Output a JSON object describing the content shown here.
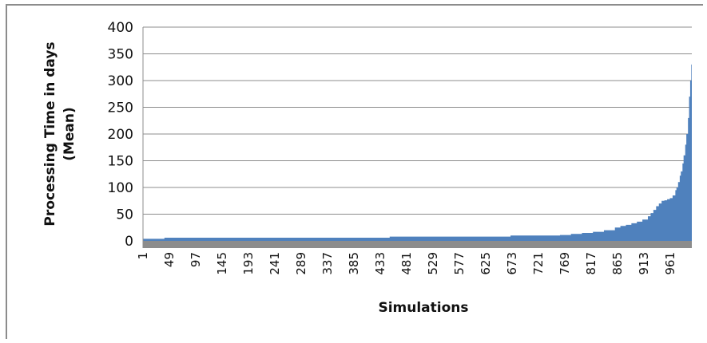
{
  "chart_data": {
    "type": "area",
    "xlabel": "Simulations",
    "ylabel_line1": "Processing Time in days",
    "ylabel_line2": "(Mean)",
    "ylim": [
      0,
      400
    ],
    "y_ticks": [
      "400",
      "350",
      "300",
      "250",
      "200",
      "150",
      "100",
      "50",
      "0"
    ],
    "x_ticks": [
      "1",
      "49",
      "97",
      "145",
      "193",
      "241",
      "289",
      "337",
      "385",
      "433",
      "481",
      "529",
      "577",
      "625",
      "673",
      "721",
      "769",
      "817",
      "865",
      "913",
      "961"
    ],
    "x_range": [
      1,
      1000
    ],
    "grid": true,
    "legend": "none",
    "series": [
      {
        "color": "#4f81bd",
        "x": [
          1,
          30,
          40,
          200,
          300,
          440,
          450,
          660,
          670,
          760,
          780,
          800,
          820,
          840,
          860,
          870,
          880,
          890,
          900,
          910,
          920,
          925,
          930,
          935,
          940,
          945,
          950,
          955,
          960,
          965,
          970,
          972,
          975,
          978,
          980,
          983,
          985,
          988,
          990,
          993,
          995,
          997,
          999,
          1000
        ],
        "y": [
          4,
          4,
          6,
          6,
          6,
          6,
          8,
          8,
          10,
          11,
          13,
          15,
          17,
          20,
          25,
          28,
          30,
          33,
          36,
          40,
          46,
          52,
          58,
          65,
          70,
          75,
          76,
          78,
          80,
          85,
          95,
          100,
          110,
          122,
          130,
          145,
          160,
          180,
          200,
          230,
          270,
          300,
          330,
          340
        ]
      }
    ]
  }
}
